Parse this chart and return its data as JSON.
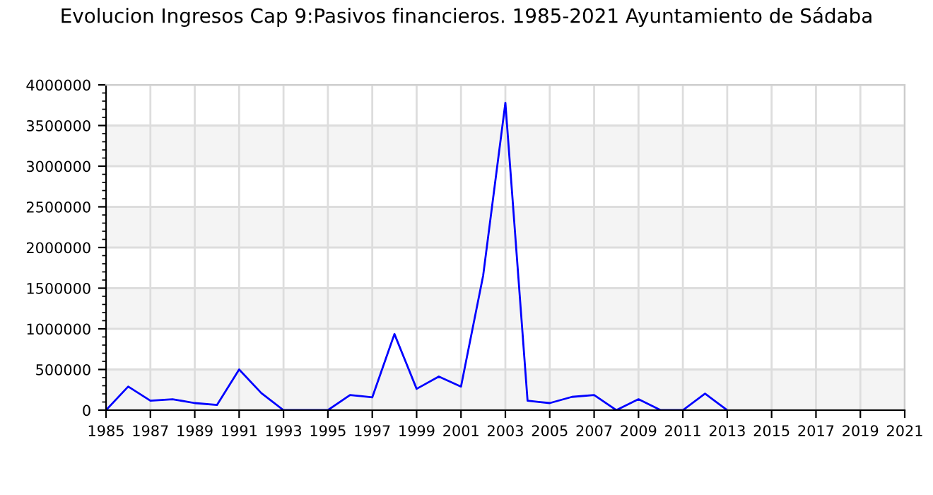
{
  "chart_data": {
    "type": "line",
    "title": "Evolucion Ingresos Cap 9:Pasivos financieros. 1985-2021 Ayuntamiento de Sádaba",
    "x": [
      1985,
      1986,
      1987,
      1988,
      1989,
      1990,
      1991,
      1992,
      1993,
      1994,
      1995,
      1996,
      1997,
      1998,
      1999,
      2000,
      2001,
      2002,
      2003,
      2004,
      2005,
      2006,
      2007,
      2008,
      2009,
      2010,
      2011,
      2012,
      2013
    ],
    "series": [
      {
        "color": "#0000ff",
        "values": [
          0,
          290000,
          116000,
          134000,
          87000,
          64000,
          500000,
          210000,
          0,
          0,
          0,
          186000,
          157000,
          936000,
          262000,
          413000,
          290000,
          1657000,
          3779000,
          116000,
          87000,
          163000,
          186000,
          0,
          134000,
          0,
          0,
          203000,
          0
        ]
      }
    ],
    "xlim": [
      1985,
      2021
    ],
    "xticks": [
      1985,
      1987,
      1989,
      1991,
      1993,
      1995,
      1997,
      1999,
      2001,
      2003,
      2005,
      2007,
      2009,
      2011,
      2013,
      2015,
      2017,
      2019,
      2021
    ],
    "ylim": [
      0,
      4000000
    ],
    "yticks": [
      0,
      500000,
      1000000,
      1500000,
      2000000,
      2500000,
      3000000,
      3500000,
      4000000
    ],
    "grid": true,
    "marker": "none",
    "line_style": "solid"
  }
}
